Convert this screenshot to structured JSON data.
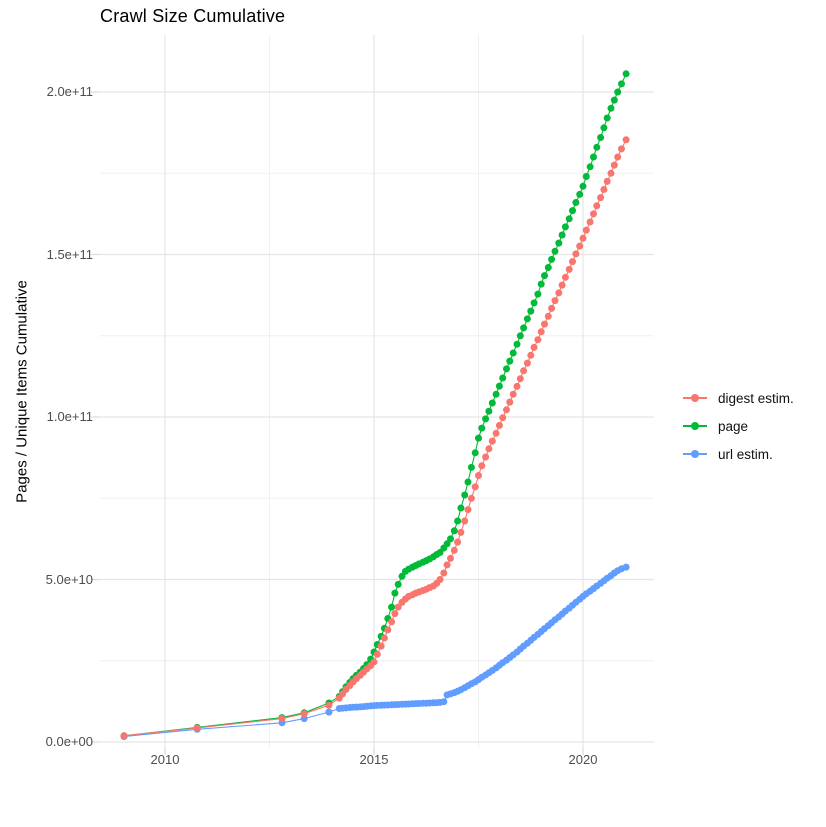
{
  "title": "Crawl Size Cumulative",
  "axes": {
    "y_title": "Pages / Unique Items Cumulative",
    "y_ticks": [
      {
        "label": "2.0e+11",
        "value_e9": 200
      },
      {
        "label": "1.5e+11",
        "value_e9": 150
      },
      {
        "label": "1.0e+11",
        "value_e9": 100
      },
      {
        "label": "5.0e+10",
        "value_e9": 50
      },
      {
        "label": "0.0e+00",
        "value_e9": 0
      }
    ],
    "y_minor_e9": [
      25,
      75,
      125,
      175
    ],
    "x_ticks": [
      {
        "label": "2010",
        "year": 2010
      },
      {
        "label": "2015",
        "year": 2015
      },
      {
        "label": "2020",
        "year": 2020
      }
    ],
    "x_minor_years": [
      2012.5,
      2017.5
    ]
  },
  "legend": [
    {
      "name": "digest estim.",
      "color": "#F8766D"
    },
    {
      "name": "page",
      "color": "#00BA38"
    },
    {
      "name": "url estim.",
      "color": "#619CFF"
    }
  ],
  "colors": {
    "grid_major": "#e5e5e5",
    "grid_minor": "#f0f0f0",
    "tick_mark": "#d9d9d9",
    "background": "#ffffff"
  },
  "chart_data": {
    "type": "scatter",
    "title": "Crawl Size Cumulative",
    "xlabel": "",
    "ylabel": "Pages / Unique Items Cumulative",
    "x_unit": "decimal year",
    "y_unit": "pages / unique items (billions, 1e9)",
    "xlim": [
      2008.4,
      2021.8
    ],
    "ylim_e9": [
      -10,
      217
    ],
    "grid": true,
    "legend_position": "right",
    "series": [
      {
        "name": "digest estim.",
        "color": "#F8766D",
        "points": [
          [
            2009.02,
            1.9
          ],
          [
            2010.77,
            4.3
          ],
          [
            2012.8,
            7.2
          ],
          [
            2013.33,
            8.7
          ],
          [
            2013.92,
            11.3
          ],
          [
            2014.17,
            13.5
          ],
          [
            2014.25,
            14.8
          ],
          [
            2014.33,
            16.2
          ],
          [
            2014.42,
            17.4
          ],
          [
            2014.5,
            18.5
          ],
          [
            2014.58,
            19.5
          ],
          [
            2014.67,
            20.5
          ],
          [
            2014.75,
            21.5
          ],
          [
            2014.83,
            22.5
          ],
          [
            2014.92,
            23.5
          ],
          [
            2015.0,
            24.6
          ],
          [
            2015.08,
            27.0
          ],
          [
            2015.17,
            29.5
          ],
          [
            2015.25,
            32.0
          ],
          [
            2015.33,
            34.5
          ],
          [
            2015.42,
            37.0
          ],
          [
            2015.5,
            39.5
          ],
          [
            2015.58,
            41.5
          ],
          [
            2015.67,
            43.0
          ],
          [
            2015.75,
            44.0
          ],
          [
            2015.83,
            44.8
          ],
          [
            2015.92,
            45.3
          ],
          [
            2016.0,
            45.8
          ],
          [
            2016.08,
            46.2
          ],
          [
            2016.17,
            46.6
          ],
          [
            2016.25,
            47.0
          ],
          [
            2016.33,
            47.5
          ],
          [
            2016.42,
            48.0
          ],
          [
            2016.5,
            48.8
          ],
          [
            2016.58,
            50.0
          ],
          [
            2016.67,
            52.0
          ],
          [
            2016.75,
            54.5
          ],
          [
            2016.83,
            56.5
          ],
          [
            2016.92,
            59.0
          ],
          [
            2017.0,
            61.5
          ],
          [
            2017.08,
            64.5
          ],
          [
            2017.17,
            68.0
          ],
          [
            2017.25,
            71.5
          ],
          [
            2017.33,
            75.0
          ],
          [
            2017.42,
            78.5
          ],
          [
            2017.5,
            82.0
          ],
          [
            2017.58,
            85.0
          ],
          [
            2017.67,
            87.7
          ],
          [
            2017.75,
            90.2
          ],
          [
            2017.83,
            92.6
          ],
          [
            2017.92,
            95.0
          ],
          [
            2018.0,
            97.4
          ],
          [
            2018.08,
            99.8
          ],
          [
            2018.17,
            102.2
          ],
          [
            2018.25,
            104.6
          ],
          [
            2018.33,
            107.0
          ],
          [
            2018.42,
            109.4
          ],
          [
            2018.5,
            111.8
          ],
          [
            2018.58,
            114.2
          ],
          [
            2018.67,
            116.6
          ],
          [
            2018.75,
            119.0
          ],
          [
            2018.83,
            121.4
          ],
          [
            2018.92,
            123.8
          ],
          [
            2019.0,
            126.2
          ],
          [
            2019.08,
            128.6
          ],
          [
            2019.17,
            131.0
          ],
          [
            2019.25,
            133.4
          ],
          [
            2019.33,
            135.8
          ],
          [
            2019.42,
            138.2
          ],
          [
            2019.5,
            140.6
          ],
          [
            2019.58,
            143.0
          ],
          [
            2019.67,
            145.4
          ],
          [
            2019.75,
            147.8
          ],
          [
            2019.83,
            150.2
          ],
          [
            2019.92,
            152.6
          ],
          [
            2020.0,
            155.0
          ],
          [
            2020.08,
            157.5
          ],
          [
            2020.17,
            160.0
          ],
          [
            2020.25,
            162.5
          ],
          [
            2020.33,
            165.0
          ],
          [
            2020.42,
            167.5
          ],
          [
            2020.5,
            170.0
          ],
          [
            2020.58,
            172.5
          ],
          [
            2020.67,
            175.0
          ],
          [
            2020.75,
            177.5
          ],
          [
            2020.83,
            180.0
          ],
          [
            2020.92,
            182.5
          ],
          [
            2021.03,
            185.3
          ]
        ]
      },
      {
        "name": "page",
        "color": "#00BA38",
        "points": [
          [
            2009.02,
            1.9
          ],
          [
            2010.77,
            4.5
          ],
          [
            2012.8,
            7.5
          ],
          [
            2013.33,
            9.0
          ],
          [
            2013.92,
            12.0
          ],
          [
            2014.17,
            14.0
          ],
          [
            2014.25,
            15.5
          ],
          [
            2014.33,
            17.0
          ],
          [
            2014.42,
            18.3
          ],
          [
            2014.5,
            19.5
          ],
          [
            2014.58,
            20.5
          ],
          [
            2014.67,
            21.5
          ],
          [
            2014.75,
            22.6
          ],
          [
            2014.83,
            23.8
          ],
          [
            2014.92,
            25.5
          ],
          [
            2015.0,
            27.7
          ],
          [
            2015.08,
            30.0
          ],
          [
            2015.17,
            32.5
          ],
          [
            2015.25,
            35.0
          ],
          [
            2015.33,
            38.0
          ],
          [
            2015.42,
            41.5
          ],
          [
            2015.5,
            45.8
          ],
          [
            2015.58,
            48.5
          ],
          [
            2015.67,
            51.0
          ],
          [
            2015.75,
            52.5
          ],
          [
            2015.83,
            53.2
          ],
          [
            2015.92,
            53.8
          ],
          [
            2016.0,
            54.3
          ],
          [
            2016.08,
            54.8
          ],
          [
            2016.17,
            55.3
          ],
          [
            2016.25,
            55.8
          ],
          [
            2016.33,
            56.3
          ],
          [
            2016.42,
            57.0
          ],
          [
            2016.5,
            57.7
          ],
          [
            2016.58,
            58.3
          ],
          [
            2016.67,
            59.7
          ],
          [
            2016.75,
            61.0
          ],
          [
            2016.83,
            62.5
          ],
          [
            2016.92,
            65.0
          ],
          [
            2017.0,
            68.0
          ],
          [
            2017.08,
            72.0
          ],
          [
            2017.17,
            76.0
          ],
          [
            2017.25,
            80.0
          ],
          [
            2017.33,
            84.5
          ],
          [
            2017.42,
            89.0
          ],
          [
            2017.5,
            93.5
          ],
          [
            2017.58,
            96.6
          ],
          [
            2017.67,
            99.4
          ],
          [
            2017.75,
            101.8
          ],
          [
            2017.83,
            104.3
          ],
          [
            2017.92,
            107.0
          ],
          [
            2018.0,
            109.5
          ],
          [
            2018.08,
            112.0
          ],
          [
            2018.17,
            114.8
          ],
          [
            2018.25,
            117.2
          ],
          [
            2018.33,
            119.7
          ],
          [
            2018.42,
            122.4
          ],
          [
            2018.5,
            125.0
          ],
          [
            2018.58,
            127.4
          ],
          [
            2018.67,
            130.2
          ],
          [
            2018.75,
            132.6
          ],
          [
            2018.83,
            135.1
          ],
          [
            2018.92,
            137.8
          ],
          [
            2019.0,
            140.9
          ],
          [
            2019.08,
            143.5
          ],
          [
            2019.17,
            146.0
          ],
          [
            2019.25,
            148.5
          ],
          [
            2019.33,
            151.0
          ],
          [
            2019.42,
            153.5
          ],
          [
            2019.5,
            156.0
          ],
          [
            2019.58,
            158.5
          ],
          [
            2019.67,
            161.0
          ],
          [
            2019.75,
            163.5
          ],
          [
            2019.83,
            166.0
          ],
          [
            2019.92,
            168.5
          ],
          [
            2020.0,
            171.0
          ],
          [
            2020.08,
            174.0
          ],
          [
            2020.17,
            177.0
          ],
          [
            2020.25,
            180.0
          ],
          [
            2020.33,
            183.0
          ],
          [
            2020.42,
            186.0
          ],
          [
            2020.5,
            189.0
          ],
          [
            2020.58,
            192.0
          ],
          [
            2020.67,
            195.0
          ],
          [
            2020.75,
            197.5
          ],
          [
            2020.83,
            200.0
          ],
          [
            2020.92,
            202.5
          ],
          [
            2021.03,
            205.6
          ]
        ]
      },
      {
        "name": "url estim.",
        "color": "#619CFF",
        "points": [
          [
            2009.02,
            1.7
          ],
          [
            2010.77,
            3.9
          ],
          [
            2012.8,
            5.9
          ],
          [
            2013.33,
            7.2
          ],
          [
            2013.92,
            9.2
          ],
          [
            2014.17,
            10.3
          ],
          [
            2014.25,
            10.4
          ],
          [
            2014.33,
            10.5
          ],
          [
            2014.42,
            10.6
          ],
          [
            2014.5,
            10.7
          ],
          [
            2014.58,
            10.75
          ],
          [
            2014.67,
            10.8
          ],
          [
            2014.75,
            10.9
          ],
          [
            2014.83,
            11.0
          ],
          [
            2014.92,
            11.1
          ],
          [
            2015.0,
            11.2
          ],
          [
            2015.08,
            11.25
          ],
          [
            2015.17,
            11.3
          ],
          [
            2015.25,
            11.35
          ],
          [
            2015.33,
            11.4
          ],
          [
            2015.42,
            11.45
          ],
          [
            2015.5,
            11.5
          ],
          [
            2015.58,
            11.55
          ],
          [
            2015.67,
            11.6
          ],
          [
            2015.75,
            11.65
          ],
          [
            2015.83,
            11.7
          ],
          [
            2015.92,
            11.75
          ],
          [
            2016.0,
            11.8
          ],
          [
            2016.08,
            11.85
          ],
          [
            2016.17,
            11.9
          ],
          [
            2016.25,
            11.95
          ],
          [
            2016.33,
            12.0
          ],
          [
            2016.42,
            12.05
          ],
          [
            2016.5,
            12.1
          ],
          [
            2016.58,
            12.2
          ],
          [
            2016.67,
            12.4
          ],
          [
            2016.75,
            14.5
          ],
          [
            2016.83,
            14.8
          ],
          [
            2016.92,
            15.2
          ],
          [
            2017.0,
            15.6
          ],
          [
            2017.08,
            16.1
          ],
          [
            2017.17,
            16.7
          ],
          [
            2017.25,
            17.3
          ],
          [
            2017.33,
            17.9
          ],
          [
            2017.42,
            18.5
          ],
          [
            2017.5,
            19.2
          ],
          [
            2017.58,
            19.9
          ],
          [
            2017.67,
            20.6
          ],
          [
            2017.75,
            21.3
          ],
          [
            2017.83,
            22.0
          ],
          [
            2017.92,
            22.8
          ],
          [
            2018.0,
            23.6
          ],
          [
            2018.08,
            24.4
          ],
          [
            2018.17,
            25.2
          ],
          [
            2018.25,
            26.0
          ],
          [
            2018.33,
            26.8
          ],
          [
            2018.42,
            27.7
          ],
          [
            2018.5,
            28.6
          ],
          [
            2018.58,
            29.5
          ],
          [
            2018.67,
            30.4
          ],
          [
            2018.75,
            31.3
          ],
          [
            2018.83,
            32.2
          ],
          [
            2018.92,
            33.1
          ],
          [
            2019.0,
            34.0
          ],
          [
            2019.08,
            34.9
          ],
          [
            2019.17,
            35.8
          ],
          [
            2019.25,
            36.7
          ],
          [
            2019.33,
            37.6
          ],
          [
            2019.42,
            38.5
          ],
          [
            2019.5,
            39.4
          ],
          [
            2019.58,
            40.3
          ],
          [
            2019.67,
            41.2
          ],
          [
            2019.75,
            42.1
          ],
          [
            2019.83,
            43.0
          ],
          [
            2019.92,
            43.9
          ],
          [
            2020.0,
            44.8
          ],
          [
            2020.08,
            45.6
          ],
          [
            2020.17,
            46.4
          ],
          [
            2020.25,
            47.2
          ],
          [
            2020.33,
            48.0
          ],
          [
            2020.42,
            48.8
          ],
          [
            2020.5,
            49.6
          ],
          [
            2020.58,
            50.4
          ],
          [
            2020.67,
            51.2
          ],
          [
            2020.75,
            52.0
          ],
          [
            2020.83,
            52.7
          ],
          [
            2020.92,
            53.3
          ],
          [
            2021.03,
            53.8
          ]
        ]
      }
    ]
  }
}
